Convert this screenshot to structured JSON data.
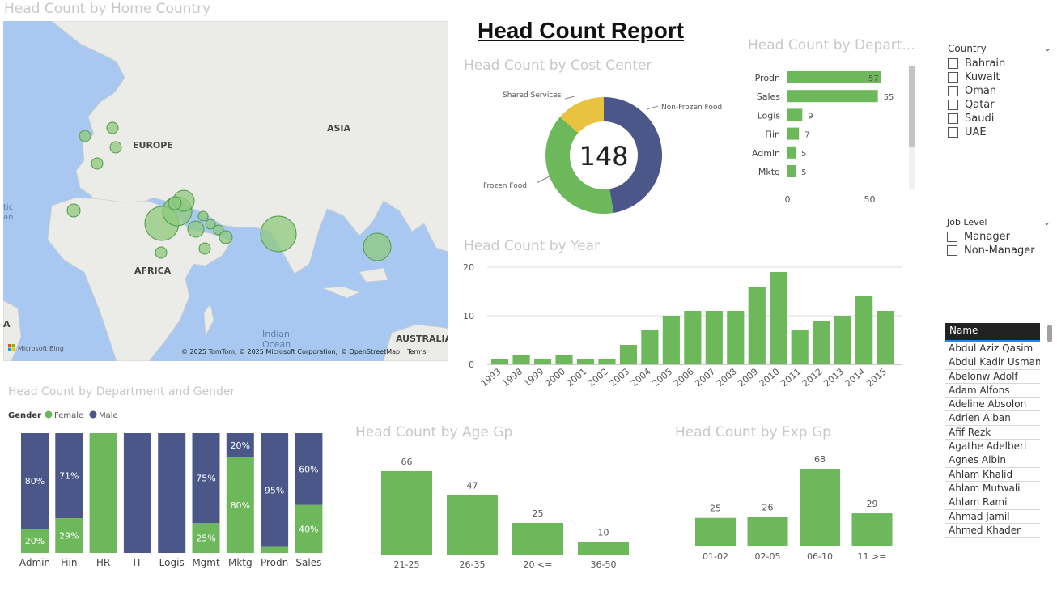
{
  "titles": {
    "map": "Head Count by Home Country",
    "report": "Head Count Report",
    "cost_center": "Head Count by Cost Center",
    "department": "Head Count by Depart...",
    "year": "Head Count by Year",
    "dept_gender": "Head Count by Department and Gender",
    "age": "Head Count by Age Gp",
    "exp": "Head Count by Exp Gp"
  },
  "map": {
    "labels": {
      "europe": "EUROPE",
      "asia": "ASIA",
      "africa": "AFRICA",
      "indian_ocean_1": "Indian",
      "indian_ocean_2": "Ocean",
      "australia": "AUSTRALIA",
      "atlantic_1": "tic",
      "atlantic_2": "an",
      "edge": "A"
    },
    "bing": "Microsoft Bing",
    "copyright": "© 2025 TomTom, © 2025 Microsoft Corporation,",
    "osm": "© OpenStreetMap",
    "terms": "Terms"
  },
  "donut": {
    "center": "148",
    "labels": {
      "shared": "Shared Services",
      "nonfrozen": "Non-Frozen Food",
      "frozen": "Frozen Food"
    }
  },
  "country_slicer": {
    "header": "Country",
    "options": [
      "Bahrain",
      "Kuwait",
      "Oman",
      "Qatar",
      "Saudi",
      "UAE"
    ]
  },
  "job_slicer": {
    "header": "Job Level",
    "options": [
      "Manager",
      "Non-Manager"
    ]
  },
  "names": {
    "header": "Name",
    "rows": [
      "Abdul Aziz Qasim",
      "Abdul Kadir Usman",
      "Abelonw Adolf",
      "Adam Alfons",
      "Adeline Absolon",
      "Adrien Alban",
      "Afif Rezk",
      "Agathe   Adelbert",
      "Agnes Albin",
      "Ahlam Khalid",
      "Ahlam Mutwali",
      "Ahlam Rami",
      "Ahmad Jamil",
      "Ahmed Khader"
    ]
  },
  "colors": {
    "green": "#6cb85b",
    "navy": "#4a5788",
    "yellow": "#e9c340",
    "title_gray": "#c8c8c8"
  },
  "chart_data": [
    {
      "id": "cost_center",
      "type": "pie",
      "title": "Head Count by Cost Center",
      "categories": [
        "Non-Frozen Food",
        "Frozen Food",
        "Shared Services"
      ],
      "values": [
        70,
        58,
        20
      ],
      "total": 148
    },
    {
      "id": "department",
      "type": "bar",
      "orientation": "horizontal",
      "title": "Head Count by Depart...",
      "categories": [
        "Prodn",
        "Sales",
        "Logis",
        "Fiin",
        "Admin",
        "Mktg"
      ],
      "values": [
        57,
        55,
        9,
        7,
        5,
        5
      ],
      "xticks": [
        "0",
        "50"
      ],
      "xlim": [
        0,
        65
      ]
    },
    {
      "id": "year",
      "type": "bar",
      "title": "Head Count by Year",
      "categories": [
        "1993",
        "1998",
        "1999",
        "2000",
        "2001",
        "2002",
        "2003",
        "2004",
        "2005",
        "2006",
        "2007",
        "2008",
        "2009",
        "2010",
        "2011",
        "2012",
        "2013",
        "2014",
        "2015"
      ],
      "values": [
        1,
        2,
        1,
        2,
        1,
        1,
        4,
        7,
        10,
        11,
        11,
        11,
        16,
        19,
        7,
        9,
        10,
        14,
        11
      ],
      "yticks": [
        "0",
        "10",
        "20"
      ],
      "ylim": [
        0,
        20
      ]
    },
    {
      "id": "dept_gender",
      "type": "bar",
      "stacked": "100%",
      "title": "Head Count by Department and Gender",
      "legend_title": "Gender",
      "categories": [
        "Admin",
        "Fiin",
        "HR",
        "IT",
        "Logis",
        "Mgmt",
        "Mktg",
        "Prodn",
        "Sales"
      ],
      "series": [
        {
          "name": "Female",
          "values": [
            20,
            29,
            100,
            0,
            0,
            25,
            80,
            5,
            40
          ],
          "labels": [
            "20%",
            "29%",
            "",
            "",
            "",
            "25%",
            "80%",
            "",
            "40%"
          ]
        },
        {
          "name": "Male",
          "values": [
            80,
            71,
            0,
            100,
            100,
            75,
            20,
            95,
            60
          ],
          "labels": [
            "80%",
            "71%",
            "",
            "",
            "",
            "75%",
            "20%",
            "95%",
            "60%"
          ]
        }
      ]
    },
    {
      "id": "age",
      "type": "bar",
      "title": "Head Count by Age Gp",
      "categories": [
        "21-25",
        "26-35",
        "20 <=",
        "36-50"
      ],
      "values": [
        66,
        47,
        25,
        10
      ]
    },
    {
      "id": "exp",
      "type": "bar",
      "title": "Head Count by Exp Gp",
      "categories": [
        "01-02",
        "02-05",
        "06-10",
        "11 >="
      ],
      "values": [
        25,
        26,
        68,
        29
      ]
    }
  ]
}
